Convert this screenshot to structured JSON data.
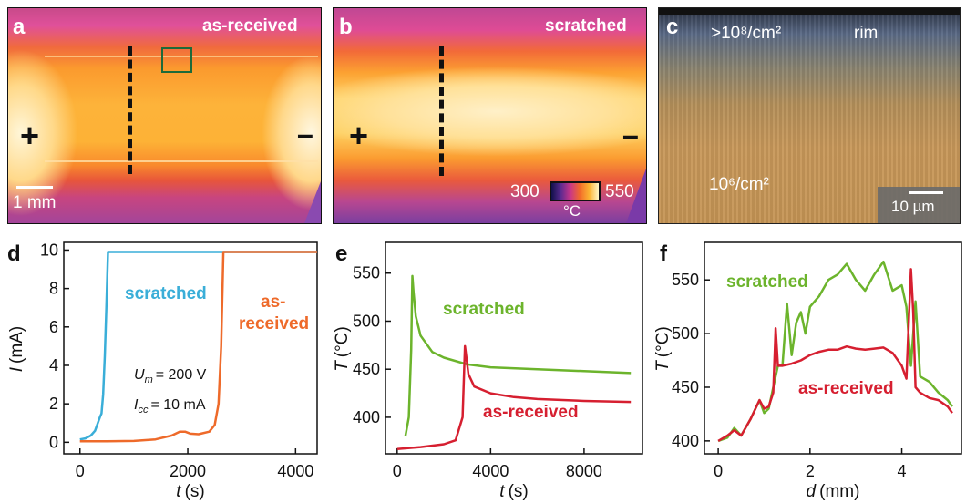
{
  "panels": {
    "a": {
      "letter": "a",
      "label": "as-received",
      "plus": "+",
      "minus": "–",
      "scale": "1 mm"
    },
    "b": {
      "letter": "b",
      "label": "scratched",
      "plus": "+",
      "minus": "–",
      "colorbar_min": "300",
      "colorbar_max": "550",
      "colorbar_unit": "°C"
    },
    "c": {
      "letter": "c",
      "density_top": ">10⁸/cm²",
      "rim": "rim",
      "density_bottom": "10⁶/cm²",
      "scale": "10 µm"
    },
    "d": {
      "letter": "d",
      "xlabel_var": "t",
      "xlabel_unit": "(s)",
      "ylabel_var": "I",
      "ylabel_unit": "(mA)",
      "label_scratched": "scratched",
      "label_as_top": "as-",
      "label_as_bottom": "received",
      "um_var": "U",
      "um_sub": "m",
      "um_val": "= 200 V",
      "icc_var": "I",
      "icc_sub": "cc",
      "icc_val": "= 10 mA",
      "xticks": [
        "0",
        "2000",
        "4000"
      ],
      "yticks": [
        "0",
        "2",
        "4",
        "6",
        "8",
        "10"
      ]
    },
    "e": {
      "letter": "e",
      "xlabel_var": "t",
      "xlabel_unit": "(s)",
      "ylabel_var": "T",
      "ylabel_unit": "(°C)",
      "label_scratched": "scratched",
      "label_as": "as-received",
      "xticks": [
        "0",
        "4000",
        "8000"
      ],
      "yticks": [
        "400",
        "450",
        "500",
        "550"
      ]
    },
    "f": {
      "letter": "f",
      "xlabel_var": "d",
      "xlabel_unit": "(mm)",
      "ylabel_var": "T",
      "ylabel_unit": "(°C)",
      "label_scratched": "scratched",
      "label_as": "as-received",
      "xticks": [
        "0",
        "2",
        "4"
      ],
      "yticks": [
        "400",
        "450",
        "500",
        "550"
      ]
    }
  },
  "colors": {
    "scratched_d": "#3aaed8",
    "as_received_d": "#ee6a2a",
    "scratched_ef": "#6cb42c",
    "as_received_ef": "#d61f30"
  },
  "chart_data": [
    {
      "type": "line",
      "panel": "d",
      "xlim": [
        -300,
        4400
      ],
      "ylim": [
        -0.6,
        10.4
      ],
      "series": [
        {
          "name": "scratched",
          "x": [
            0,
            100,
            200,
            280,
            330,
            370,
            400,
            430,
            460,
            490,
            520,
            560,
            2600,
            4400
          ],
          "y": [
            0.15,
            0.2,
            0.35,
            0.6,
            1.0,
            1.3,
            1.5,
            2.5,
            4.5,
            7.0,
            9.9,
            9.9,
            9.9,
            9.9
          ]
        },
        {
          "name": "as-received",
          "x": [
            0,
            500,
            1000,
            1400,
            1700,
            1850,
            1950,
            2050,
            2200,
            2400,
            2500,
            2570,
            2620,
            2660,
            2700,
            2900,
            4400
          ],
          "y": [
            0.05,
            0.05,
            0.07,
            0.15,
            0.35,
            0.55,
            0.55,
            0.45,
            0.42,
            0.55,
            0.9,
            2.0,
            5.0,
            9.9,
            9.9,
            9.9,
            9.9
          ]
        }
      ]
    },
    {
      "type": "line",
      "panel": "e",
      "xlim": [
        -500,
        10500
      ],
      "ylim": [
        362,
        582
      ],
      "series": [
        {
          "name": "scratched",
          "x": [
            350,
            500,
            600,
            650,
            700,
            800,
            1000,
            1500,
            2000,
            3000,
            4000,
            6000,
            8000,
            10000
          ],
          "y": [
            380,
            400,
            470,
            547,
            530,
            505,
            485,
            468,
            462,
            455,
            452,
            450,
            448,
            446
          ]
        },
        {
          "name": "as-received",
          "x": [
            0,
            1000,
            2000,
            2500,
            2800,
            2900,
            2950,
            3050,
            3300,
            4000,
            5000,
            6000,
            8000,
            10000
          ],
          "y": [
            367,
            369,
            372,
            376,
            400,
            474,
            465,
            445,
            432,
            425,
            421,
            419,
            417,
            416
          ]
        }
      ]
    },
    {
      "type": "line",
      "panel": "f",
      "xlim": [
        -0.3,
        5.3
      ],
      "ylim": [
        388,
        585
      ],
      "series": [
        {
          "name": "scratched",
          "x": [
            0,
            0.2,
            0.35,
            0.5,
            0.7,
            0.9,
            1.0,
            1.1,
            1.2,
            1.3,
            1.4,
            1.5,
            1.6,
            1.7,
            1.8,
            1.9,
            2.0,
            2.2,
            2.4,
            2.6,
            2.8,
            3.0,
            3.2,
            3.4,
            3.6,
            3.8,
            4.0,
            4.1,
            4.2,
            4.3,
            4.4,
            4.6,
            4.8,
            5.0,
            5.1
          ],
          "y": [
            400,
            403,
            412,
            405,
            420,
            438,
            426,
            430,
            450,
            470,
            470,
            528,
            480,
            510,
            520,
            500,
            525,
            535,
            550,
            555,
            565,
            550,
            540,
            555,
            567,
            540,
            545,
            525,
            470,
            530,
            460,
            455,
            445,
            438,
            432
          ]
        },
        {
          "name": "as-received",
          "x": [
            0,
            0.2,
            0.35,
            0.5,
            0.7,
            0.9,
            1.0,
            1.1,
            1.2,
            1.25,
            1.3,
            1.4,
            1.6,
            1.8,
            2.0,
            2.2,
            2.4,
            2.6,
            2.8,
            3.0,
            3.2,
            3.4,
            3.6,
            3.8,
            4.0,
            4.1,
            4.2,
            4.25,
            4.3,
            4.4,
            4.6,
            4.8,
            5.0,
            5.1
          ],
          "y": [
            400,
            405,
            410,
            405,
            420,
            438,
            430,
            432,
            445,
            505,
            470,
            470,
            472,
            475,
            480,
            483,
            485,
            485,
            488,
            486,
            485,
            486,
            487,
            482,
            470,
            458,
            560,
            520,
            450,
            445,
            440,
            438,
            432,
            426
          ]
        }
      ]
    }
  ]
}
